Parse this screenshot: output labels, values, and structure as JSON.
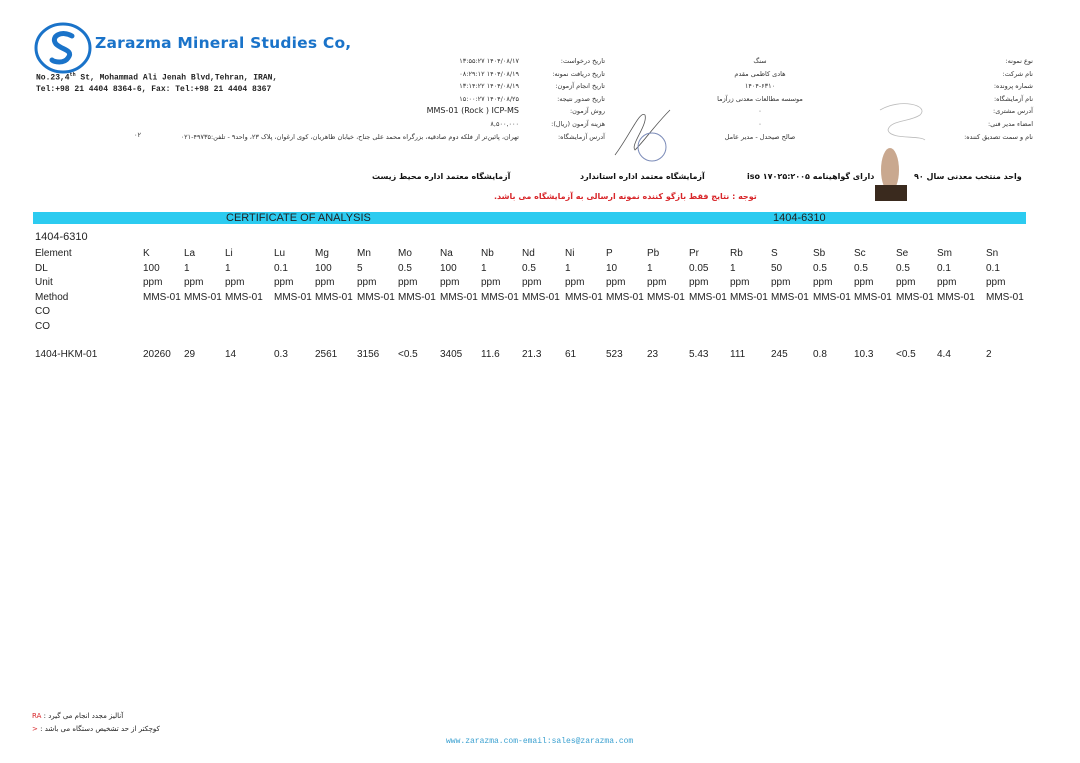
{
  "header": {
    "company_name": "Zarazma Mineral Studies Co,",
    "address_line": "No.23,4th St, Mohammad Ali Jenah Blvd,Tehran, IRAN,",
    "phone_line": "Tel:+98 21 4404 8364-6, Fax: Tel:+98 21 4404 8367",
    "brand_color": "#1a73c9"
  },
  "info_right": [
    {
      "label": "نوع نمونه:",
      "value": "سنگ"
    },
    {
      "label": "نام شرکت:",
      "value": "هادی کاظمی مقدم"
    },
    {
      "label": "شماره پرونده:",
      "value": "۱۴۰۴-۶۳۱۰"
    },
    {
      "label": "نام آزمایشگاه:",
      "value": "موسسه مطالعات معدنی زرآزما"
    },
    {
      "label": "آدرس مشتری:",
      "value": "۰"
    },
    {
      "label": "امضاء مدیر فنی:",
      "value": "۰"
    },
    {
      "label": "نام و سمت تصدیق کننده:",
      "value": "صالح صیحدل - مدیر عامل"
    }
  ],
  "info_mid": [
    {
      "label": "تاریخ درخواست:",
      "value": "۱۴۰۴/۰۸/۱۷ ۱۳:۵۵:۲۷"
    },
    {
      "label": "تاریخ دریافت نمونه:",
      "value": "۱۴۰۴/۰۸/۱۹ ۰۸:۲۹:۱۲"
    },
    {
      "label": "تاریخ انجام آزمون:",
      "value": "۱۴۰۴/۰۸/۱۹ ۱۳:۱۴:۲۲"
    },
    {
      "label": "تاریخ صدور نتیجه:",
      "value": "۱۴۰۴/۰۸/۲۵ ۱۵:۰۰:۲۷"
    },
    {
      "label": "روش آزمون:",
      "value": "MMS-01 (Rock ) ICP-MS"
    },
    {
      "label": "هزینه آزمون (ریال):",
      "value": "۸,۵۰۰,۰۰۰"
    },
    {
      "label": "آدرس آزمایشگاه:",
      "value": "تهران، پائین‌تر از فلکه دوم صادقیه، بزرگراه محمد علی جناح، خیابان ظاهریان، کوی ارغوان، پلاک ۲۳، واحد۹ - تلفن:۴۹۷۳۵-۰۲۱"
    }
  ],
  "address_suffix": "۰۲",
  "banners": {
    "mining_unit": "واحد منتخب معدنی سال ۹۰",
    "iso": "دارای گواهینامه iso ۱۷۰۲۵:۲۰۰۵",
    "standard_lab": "آزمایشگاه معتمد اداره استاندارد",
    "env_lab": "آزمایشگاه معتمد اداره محیط زیست",
    "notice": "توجه : نتایج فقط بازگو کننده نمونه ارسالی به آزمایشگاه می باشد."
  },
  "certificate": {
    "title": "CERTIFICATE OF ANALYSIS",
    "number": "1404-6310",
    "bar_color": "#2ccbf0",
    "file_id": "1404-6310"
  },
  "table": {
    "row_labels": [
      "Element",
      "DL",
      "Unit",
      "Method",
      "CO",
      "CO"
    ],
    "elements": [
      "K",
      "La",
      "Li",
      "Lu",
      "Mg",
      "Mn",
      "Mo",
      "Na",
      "Nb",
      "Nd",
      "Ni",
      "P",
      "Pb",
      "Pr",
      "Rb",
      "S",
      "Sb",
      "Sc",
      "Se",
      "Sm",
      "Sn"
    ],
    "dl": [
      "100",
      "1",
      "1",
      "0.1",
      "100",
      "5",
      "0.5",
      "100",
      "1",
      "0.5",
      "1",
      "10",
      "1",
      "0.05",
      "1",
      "50",
      "0.5",
      "0.5",
      "0.5",
      "0.1",
      "0.1"
    ],
    "unit": [
      "ppm",
      "ppm",
      "ppm",
      "ppm",
      "ppm",
      "ppm",
      "ppm",
      "ppm",
      "ppm",
      "ppm",
      "ppm",
      "ppm",
      "ppm",
      "ppm",
      "ppm",
      "ppm",
      "ppm",
      "ppm",
      "ppm",
      "ppm",
      "ppm"
    ],
    "method": [
      "MMS-01",
      "MMS-01",
      "MMS-01",
      "MMS-01",
      "MMS-01",
      "MMS-01",
      "MMS-01",
      "MMS-01",
      "MMS-01",
      "MMS-01",
      "MMS-01",
      "MMS-01",
      "MMS-01",
      "MMS-01",
      "MMS-01",
      "MMS-01",
      "MMS-01",
      "MMS-01",
      "MMS-01",
      "MMS-01",
      "MMS-01"
    ],
    "samples": [
      {
        "id": "1404-HKM-01",
        "values": [
          "20260",
          "29",
          "14",
          "0.3",
          "2561",
          "3156",
          "<0.5",
          "3405",
          "11.6",
          "21.3",
          "61",
          "523",
          "23",
          "5.43",
          "111",
          "245",
          "0.8",
          "10.3",
          "<0.5",
          "4.4",
          "2"
        ]
      }
    ]
  },
  "footer": {
    "ra_code": "RA",
    "ra_text": "آنالیز مجدد انجام می گیرد :",
    "lt_code": "<",
    "lt_text": "کوچکتر از حد تشخیص دستگاه می باشد :",
    "website": "www.zarazma.com-email:sales@zarazma.com"
  }
}
